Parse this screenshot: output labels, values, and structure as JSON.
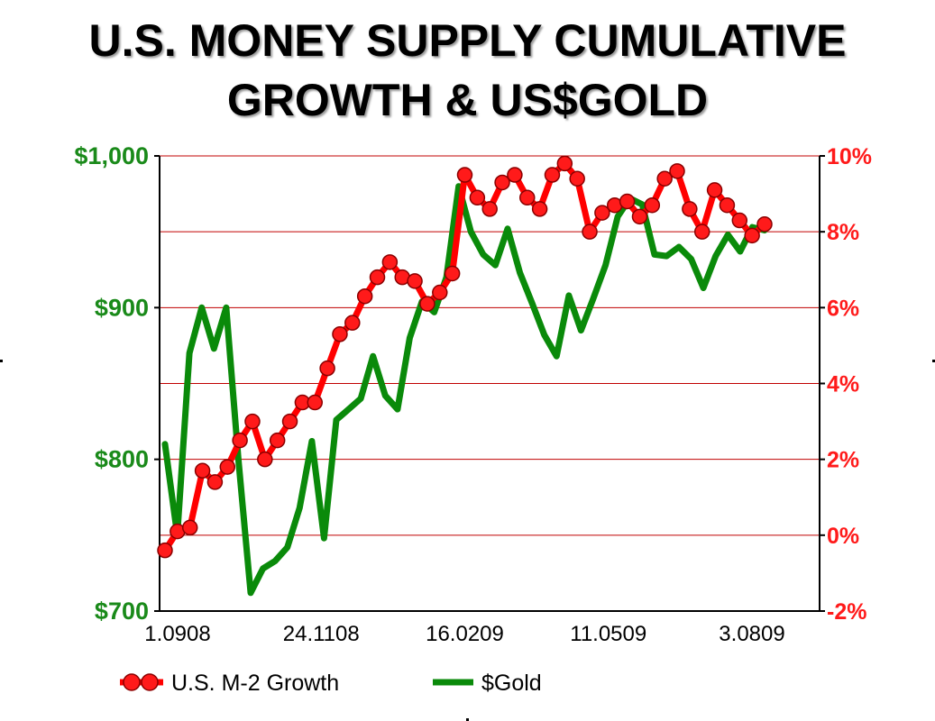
{
  "chart_data": {
    "type": "line",
    "title": "U.S. MONEY SUPPLY CUMULATIVE",
    "subtitle": "GROWTH & US$GOLD",
    "x_tick_labels": [
      "1.0908",
      "24.1108",
      "16.0209",
      "11.0509",
      "3.0809"
    ],
    "y_left": {
      "ylim": [
        700,
        1000
      ],
      "ticks": [
        "$700",
        "$800",
        "$900",
        "$1,000"
      ],
      "color": "#1a8a1a"
    },
    "y_right": {
      "ylim": [
        -2,
        10
      ],
      "ticks": [
        "-2%",
        "0%",
        "2%",
        "4%",
        "6%",
        "8%",
        "10%"
      ],
      "color": "#ff1a1a"
    },
    "grid": true,
    "legend_position": "bottom-left",
    "series": [
      {
        "name": "U.S. M-2 Growth",
        "axis": "right",
        "color": "#ff0000",
        "marker": "circle",
        "values": [
          -0.4,
          0.1,
          0.2,
          1.7,
          1.4,
          1.8,
          2.5,
          3.0,
          2.0,
          2.5,
          3.0,
          3.5,
          3.5,
          4.4,
          5.3,
          5.6,
          6.3,
          6.8,
          7.2,
          6.8,
          6.7,
          6.1,
          6.4,
          6.9,
          9.5,
          8.9,
          8.6,
          9.3,
          9.5,
          8.9,
          8.6,
          9.5,
          9.8,
          9.4,
          8.0,
          8.5,
          8.7,
          8.8,
          8.4,
          8.7,
          9.4,
          9.6,
          8.6,
          8.0,
          9.1,
          8.7,
          8.3,
          7.9,
          8.2
        ]
      },
      {
        "name": "$Gold",
        "axis": "left",
        "color": "#0a8a0a",
        "marker": "none",
        "values": [
          810,
          750,
          870,
          900,
          873,
          900,
          800,
          712,
          728,
          733,
          742,
          768,
          812,
          748,
          826,
          833,
          840,
          868,
          842,
          833,
          880,
          904,
          897,
          920,
          980,
          950,
          935,
          928,
          952,
          923,
          903,
          882,
          868,
          908,
          885,
          906,
          928,
          960,
          972,
          968,
          935,
          934,
          940,
          932,
          913,
          934,
          948,
          937,
          953,
          951
        ]
      }
    ]
  }
}
